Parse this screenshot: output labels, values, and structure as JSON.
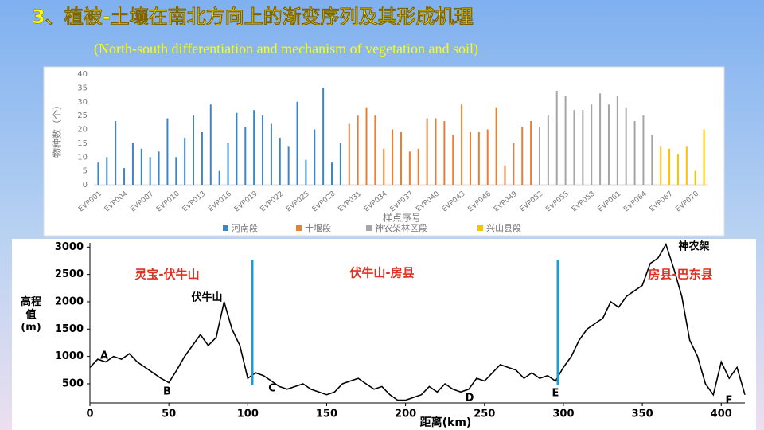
{
  "header": {
    "title": "3、植被-土壤在南北方向上的渐变序列及其形成机理",
    "subtitle": "(North-south differentiation and mechanism of vegetation and soil)"
  },
  "chart_data": [
    {
      "type": "bar",
      "y_label": "物种数（个）",
      "x_label": "样点序号",
      "ylim": [
        0,
        40
      ],
      "yticks": [
        0,
        5,
        10,
        15,
        20,
        25,
        30,
        35,
        40
      ],
      "legend": "bottom",
      "categories": [
        "EVP001",
        null,
        null,
        "EVP004",
        null,
        null,
        "EVP007",
        null,
        null,
        "EVP010",
        null,
        null,
        "EVP013",
        null,
        null,
        "EVP016",
        null,
        null,
        "EVP019",
        null,
        null,
        "EVP022",
        null,
        null,
        "EVP025",
        null,
        null,
        "EVP028",
        null,
        null,
        "EVP031",
        null,
        null,
        "EVP034",
        null,
        null,
        "EVP037",
        null,
        null,
        "EVP040",
        null,
        null,
        "EVP043",
        null,
        null,
        "EVP046",
        null,
        null,
        "EVP049",
        null,
        null,
        "EVP052",
        null,
        null,
        "EVP055",
        null,
        null,
        "EVP058",
        null,
        null,
        "EVP061",
        null,
        null,
        "EVP064",
        null,
        null,
        "EVP067",
        null,
        null,
        "EVP070",
        null
      ],
      "series": [
        {
          "name": "河南段",
          "color": "#3a86c8",
          "values": [
            8,
            10,
            23,
            6,
            15,
            13,
            10,
            12,
            24,
            10,
            17,
            25,
            19,
            29,
            5,
            15,
            26,
            21,
            27,
            25,
            22,
            17,
            14,
            30,
            9,
            20,
            35,
            8,
            15,
            null,
            null,
            null,
            null,
            null,
            null,
            null,
            null,
            null,
            null,
            null,
            null,
            null,
            null,
            null,
            null,
            null,
            null,
            null,
            null,
            null,
            null,
            null,
            null,
            null,
            null,
            null,
            null,
            null,
            null,
            null,
            null,
            null,
            null,
            null,
            null,
            null,
            null,
            null,
            null,
            null,
            null
          ]
        },
        {
          "name": "十堰段",
          "color": "#ed7d31",
          "values": [
            null,
            null,
            null,
            null,
            null,
            null,
            null,
            null,
            null,
            null,
            null,
            null,
            null,
            null,
            null,
            null,
            null,
            null,
            null,
            null,
            null,
            null,
            null,
            null,
            null,
            null,
            null,
            null,
            null,
            22,
            25,
            28,
            25,
            13,
            20,
            19,
            12,
            13,
            24,
            24,
            23,
            18,
            29,
            19,
            19,
            20,
            28,
            7,
            15,
            21,
            23,
            null,
            null,
            null,
            null,
            null,
            null,
            null,
            null,
            null,
            null,
            null,
            null,
            null,
            null,
            null,
            null,
            null,
            null,
            null,
            null
          ]
        },
        {
          "name": "神农架林区段",
          "color": "#a5a5a5",
          "values": [
            null,
            null,
            null,
            null,
            null,
            null,
            null,
            null,
            null,
            null,
            null,
            null,
            null,
            null,
            null,
            null,
            null,
            null,
            null,
            null,
            null,
            null,
            null,
            null,
            null,
            null,
            null,
            null,
            null,
            null,
            null,
            null,
            null,
            null,
            null,
            null,
            null,
            null,
            null,
            null,
            null,
            null,
            null,
            null,
            null,
            null,
            null,
            null,
            null,
            null,
            null,
            21,
            25,
            34,
            32,
            27,
            27,
            29,
            33,
            29,
            32,
            28,
            23,
            25,
            18,
            null,
            null,
            null,
            null,
            null,
            null
          ]
        },
        {
          "name": "兴山县段",
          "color": "#ffc000",
          "values": [
            null,
            null,
            null,
            null,
            null,
            null,
            null,
            null,
            null,
            null,
            null,
            null,
            null,
            null,
            null,
            null,
            null,
            null,
            null,
            null,
            null,
            null,
            null,
            null,
            null,
            null,
            null,
            null,
            null,
            null,
            null,
            null,
            null,
            null,
            null,
            null,
            null,
            null,
            null,
            null,
            null,
            null,
            null,
            null,
            null,
            null,
            null,
            null,
            null,
            null,
            null,
            null,
            null,
            null,
            null,
            null,
            null,
            null,
            null,
            null,
            null,
            null,
            null,
            null,
            null,
            14,
            13,
            11,
            14,
            5,
            20
          ]
        }
      ]
    },
    {
      "type": "line",
      "y_label": "高程值(m)",
      "x_label": "距离(km)",
      "xlim": [
        0,
        415
      ],
      "xticks": [
        0,
        50,
        100,
        150,
        200,
        250,
        300,
        350,
        400
      ],
      "ylim": [
        150,
        3150
      ],
      "yticks": [
        500,
        1000,
        1500,
        2000,
        2500,
        3000
      ],
      "annotations": [
        "灵宝-伏牛山",
        "伏牛山-房县",
        "房县-巴东县",
        "伏牛山",
        "神农架",
        "A",
        "B",
        "C",
        "D",
        "E",
        "F"
      ],
      "x": [
        0,
        5,
        10,
        15,
        20,
        25,
        30,
        35,
        40,
        45,
        50,
        55,
        60,
        65,
        70,
        75,
        80,
        85,
        90,
        95,
        100,
        105,
        110,
        115,
        120,
        125,
        130,
        135,
        140,
        145,
        150,
        155,
        160,
        165,
        170,
        175,
        180,
        185,
        190,
        195,
        200,
        205,
        210,
        215,
        220,
        225,
        230,
        235,
        240,
        245,
        250,
        255,
        260,
        265,
        270,
        275,
        280,
        285,
        290,
        295,
        300,
        305,
        310,
        315,
        320,
        325,
        330,
        335,
        340,
        345,
        350,
        355,
        360,
        365,
        370,
        375,
        380,
        385,
        390,
        395,
        400,
        405,
        410,
        415
      ],
      "series": [
        {
          "name": "高程",
          "color": "#000000",
          "values": [
            800,
            950,
            900,
            1000,
            950,
            1050,
            900,
            800,
            700,
            600,
            520,
            750,
            1000,
            1200,
            1400,
            1200,
            1350,
            2000,
            1500,
            1200,
            600,
            700,
            650,
            550,
            450,
            400,
            450,
            500,
            400,
            350,
            300,
            350,
            500,
            550,
            600,
            500,
            400,
            450,
            300,
            200,
            200,
            250,
            300,
            450,
            350,
            500,
            400,
            350,
            400,
            600,
            550,
            700,
            850,
            800,
            750,
            600,
            700,
            600,
            650,
            550,
            800,
            1000,
            1300,
            1500,
            1600,
            1700,
            2000,
            1900,
            2100,
            2200,
            2300,
            2700,
            2800,
            3050,
            2600,
            2100,
            1300,
            1000,
            500,
            300,
            900,
            600,
            800,
            300
          ]
        }
      ]
    }
  ]
}
